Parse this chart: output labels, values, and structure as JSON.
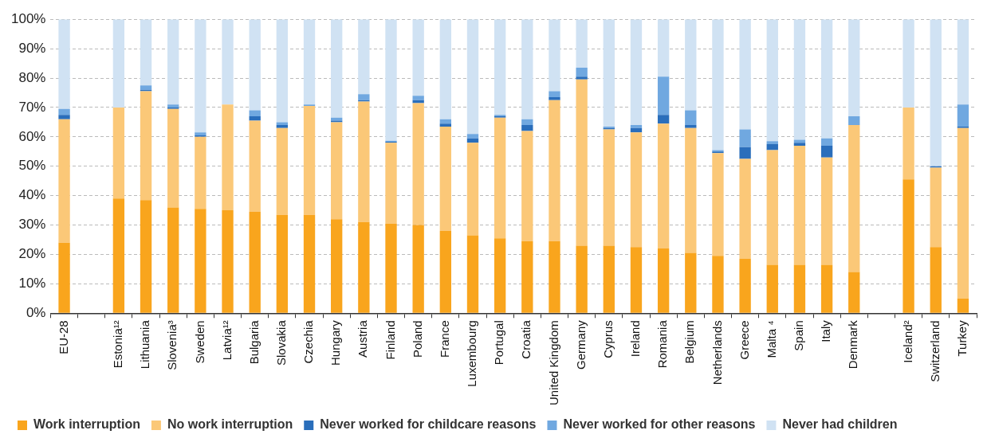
{
  "chart_data": {
    "type": "bar",
    "stacked": true,
    "legend": "bottom",
    "grid": "y",
    "categories": [
      "EU-28",
      null,
      "Estonia¹²",
      "Lithuania",
      "Slovenia³",
      "Sweden",
      "Latvia¹²",
      "Bulgaria",
      "Slovakia",
      "Czechia",
      "Hungary",
      "Austria",
      "Finland",
      "Poland",
      "France",
      "Luxembourg",
      "Portugal",
      "Croatia",
      "United Kingdom",
      "Germany",
      "Cyprus",
      "Ireland",
      "Romania",
      "Belgium",
      "Netherlands",
      "Greece",
      "Malta ⁴",
      "Spain",
      "Italy",
      "Denmark",
      null,
      "Iceland²",
      "Switzerland",
      "Turkey"
    ],
    "series": [
      {
        "name": "Work interruption",
        "color": "#f9a51d",
        "values": [
          24,
          null,
          39,
          38.5,
          36,
          35.5,
          35,
          34.5,
          33.5,
          33.5,
          32,
          31,
          30.5,
          30,
          28,
          26.5,
          25.5,
          24.5,
          24.5,
          23,
          23,
          22.5,
          22,
          20.5,
          19.5,
          18.5,
          16.5,
          16.5,
          16.5,
          14,
          null,
          45.5,
          22.5,
          5
        ]
      },
      {
        "name": "No work interruption",
        "color": "#fbc878",
        "values": [
          42,
          null,
          31,
          37,
          33.5,
          24.5,
          36,
          31,
          29.5,
          37,
          33,
          41,
          27.5,
          41.5,
          35.5,
          31.5,
          41,
          37.5,
          48,
          56.5,
          39.5,
          39,
          42.5,
          42.5,
          35,
          34,
          39,
          40.5,
          36.5,
          50,
          null,
          24.5,
          27,
          58
        ]
      },
      {
        "name": "Never worked for childcare reasons",
        "color": "#2a6ebb",
        "values": [
          1.5,
          null,
          0,
          0.5,
          0.5,
          0.5,
          0,
          1.5,
          1,
          0,
          0.5,
          0.5,
          0.3,
          1,
          1,
          1.5,
          0.5,
          2,
          1,
          1,
          0.5,
          1.5,
          3,
          1,
          0.5,
          4,
          2,
          1,
          4,
          0,
          null,
          0,
          0.5,
          0.5
        ]
      },
      {
        "name": "Never worked for other reasons",
        "color": "#70a8e0",
        "values": [
          2,
          null,
          0,
          1.5,
          1,
          1,
          0,
          2,
          1,
          0.5,
          1,
          2,
          0.4,
          1.5,
          1.5,
          1.5,
          0.5,
          2,
          2,
          3,
          0.5,
          1,
          13,
          5,
          0.5,
          6,
          1,
          1,
          2.5,
          3,
          null,
          0,
          0,
          7.5
        ]
      },
      {
        "name": "Never had children",
        "color": "#d0e2f3",
        "values": [
          30.5,
          null,
          30,
          22.5,
          29,
          38.5,
          29,
          31,
          35,
          29,
          33.5,
          25.5,
          41.3,
          26,
          34,
          39,
          32.5,
          34,
          24.5,
          16.5,
          36.5,
          36,
          19.5,
          31,
          44.5,
          37.5,
          41.5,
          41,
          40.5,
          33,
          null,
          30,
          50,
          29
        ]
      }
    ],
    "ylim": [
      0,
      100
    ],
    "yticks": [
      {
        "value": 0,
        "label": "0%"
      },
      {
        "value": 10,
        "label": "10%"
      },
      {
        "value": 20,
        "label": "20%"
      },
      {
        "value": 30,
        "label": "30%"
      },
      {
        "value": 40,
        "label": "40%"
      },
      {
        "value": 50,
        "label": "50%"
      },
      {
        "value": 60,
        "label": "60%"
      },
      {
        "value": 70,
        "label": "70%"
      },
      {
        "value": 80,
        "label": "80%"
      },
      {
        "value": 90,
        "label": "90%"
      },
      {
        "value": 100,
        "label": "100%"
      }
    ]
  }
}
